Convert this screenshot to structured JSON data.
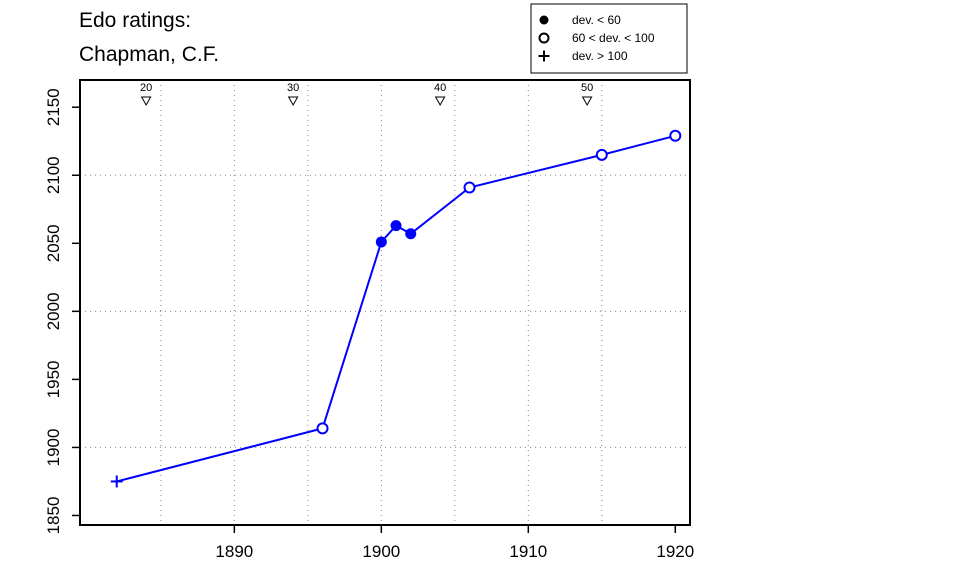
{
  "chart_data": {
    "type": "scatter",
    "title_lines": [
      "Edo ratings:",
      "Chapman, C.F."
    ],
    "xlabel": "",
    "ylabel": "",
    "xlim": [
      1879.5,
      1921
    ],
    "ylim": [
      1843,
      2170
    ],
    "x_ticks": [
      1890,
      1900,
      1910,
      1920
    ],
    "y_ticks": [
      1850,
      1900,
      1950,
      2000,
      2050,
      2100,
      2150
    ],
    "grid": "dotted",
    "line_color": "#0000ff",
    "points": [
      {
        "x": 1882,
        "y": 1875,
        "marker": "plus"
      },
      {
        "x": 1896,
        "y": 1914,
        "marker": "open"
      },
      {
        "x": 1900,
        "y": 2051,
        "marker": "filled"
      },
      {
        "x": 1901,
        "y": 2063,
        "marker": "filled"
      },
      {
        "x": 1902,
        "y": 2057,
        "marker": "filled"
      },
      {
        "x": 1906,
        "y": 2091,
        "marker": "open"
      },
      {
        "x": 1915,
        "y": 2115,
        "marker": "open"
      },
      {
        "x": 1920,
        "y": 2129,
        "marker": "open"
      }
    ],
    "age_markers": [
      {
        "x": 1884,
        "label": "20"
      },
      {
        "x": 1894,
        "label": "30"
      },
      {
        "x": 1904,
        "label": "40"
      },
      {
        "x": 1914,
        "label": "50"
      }
    ],
    "legend": {
      "placement": "top-right",
      "entries": [
        {
          "marker": "filled",
          "label": "dev. < 60"
        },
        {
          "marker": "open",
          "label": "60 < dev. < 100"
        },
        {
          "marker": "plus",
          "label": "dev. > 100"
        }
      ]
    }
  }
}
